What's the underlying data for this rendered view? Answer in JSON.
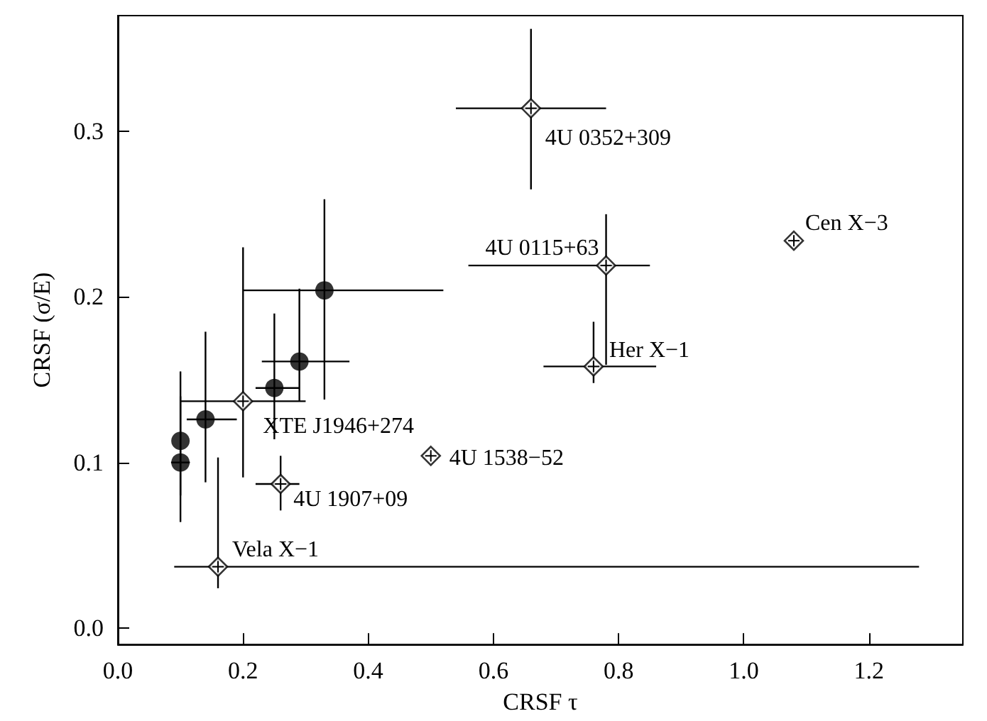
{
  "chart_data": {
    "type": "scatter",
    "xlabel": "CRSF τ",
    "ylabel": "CRSF (σ/E)",
    "xlim": [
      0,
      1.35
    ],
    "ylim": [
      -0.01,
      0.37
    ],
    "xticks": [
      {
        "value": 0,
        "label": "0.0"
      },
      {
        "value": 0.2,
        "label": "0.2"
      },
      {
        "value": 0.4,
        "label": "0.4"
      },
      {
        "value": 0.6,
        "label": "0.6"
      },
      {
        "value": 0.8,
        "label": "0.8"
      },
      {
        "value": 1.0,
        "label": "1.0"
      },
      {
        "value": 1.2,
        "label": "1.2"
      }
    ],
    "yticks": [
      {
        "value": 0,
        "label": "0.0"
      },
      {
        "value": 0.1,
        "label": "0.1"
      },
      {
        "value": 0.2,
        "label": "0.2"
      },
      {
        "value": 0.3,
        "label": "0.3"
      }
    ],
    "grid": false,
    "series": [
      {
        "color": "#000000",
        "marker": "circle",
        "x": [
          0.1,
          0.1,
          0.14,
          0.25,
          0.29,
          0.33
        ],
        "values": [
          0.113,
          0.1,
          0.126,
          0.145,
          0.161,
          0.204
        ],
        "errors": [
          [
            0.08,
            0.155
          ],
          [
            0.064,
            0.14
          ],
          [
            0.088,
            0.179
          ],
          [
            0.114,
            0.19
          ],
          [
            0.137,
            0.205
          ],
          [
            0.138,
            0.259
          ]
        ],
        "xerrors": [
          null,
          [
            0.085,
            0.115
          ],
          [
            0.11,
            0.19
          ],
          [
            0.22,
            0.29
          ],
          [
            0.23,
            0.37
          ],
          [
            0.2,
            0.52
          ]
        ]
      },
      {
        "color": "#000000",
        "marker": "diamond",
        "x": [
          0.2,
          0.26,
          0.16,
          0.5,
          0.66,
          0.78,
          0.76,
          1.08
        ],
        "values": [
          0.137,
          0.087,
          0.037,
          0.104,
          0.314,
          0.219,
          0.158,
          0.234
        ],
        "errors": [
          [
            0.091,
            0.23
          ],
          [
            0.071,
            0.104
          ],
          [
            0.024,
            0.103
          ],
          null,
          [
            0.265,
            0.362
          ],
          [
            0.159,
            0.25
          ],
          [
            0.148,
            0.185
          ],
          null
        ],
        "xerrors": [
          [
            0.1,
            0.3
          ],
          [
            0.22,
            0.29
          ],
          [
            0.09,
            1.28
          ],
          null,
          [
            0.54,
            0.78
          ],
          [
            0.56,
            0.85
          ],
          [
            0.68,
            0.86
          ],
          null
        ]
      }
    ],
    "annotations": [
      {
        "text": "XTE J1946+274",
        "x": 0.2,
        "y": 0.137
      },
      {
        "text": "4U 1907+09",
        "x": 0.26,
        "y": 0.087
      },
      {
        "text": "Vela X−1",
        "x": 0.16,
        "y": 0.037
      },
      {
        "text": "4U 1538−52",
        "x": 0.5,
        "y": 0.104
      },
      {
        "text": "4U 0352+309",
        "x": 0.66,
        "y": 0.314
      },
      {
        "text": "4U 0115+63",
        "x": 0.78,
        "y": 0.219
      },
      {
        "text": "Her X−1",
        "x": 0.76,
        "y": 0.158
      },
      {
        "text": "Cen X−3",
        "x": 1.08,
        "y": 0.234
      }
    ]
  }
}
